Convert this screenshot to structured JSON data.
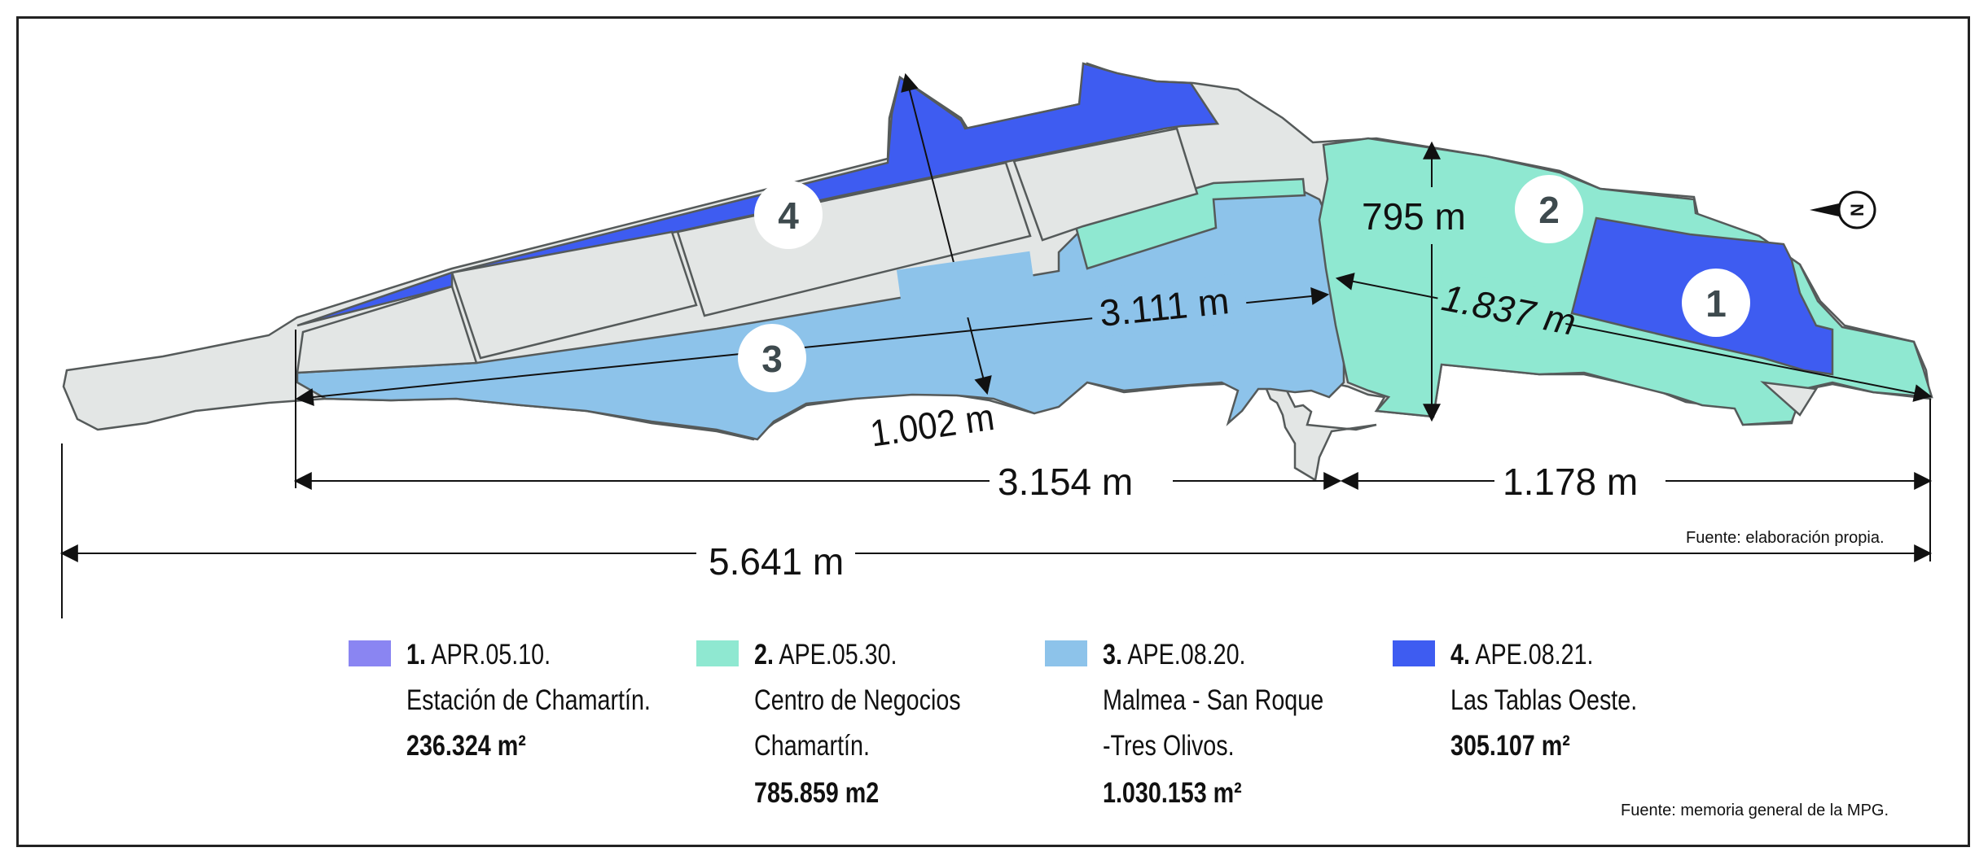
{
  "colors": {
    "zone_1": "#8a85f2",
    "zone_2": "#8fe8d1",
    "zone_3": "#8dc3ea",
    "zone_4": "#3e5cf1",
    "gray_area": "#e3e6e5",
    "outline": "#555a5a",
    "badge_text": "#3e4a4e"
  },
  "map": {
    "markers": [
      {
        "id": "1",
        "label": "1"
      },
      {
        "id": "2",
        "label": "2"
      },
      {
        "id": "3",
        "label": "3"
      },
      {
        "id": "4",
        "label": "4"
      }
    ],
    "dimensions": {
      "d_1002": "1.002 m",
      "d_3111": "3.111 m",
      "d_795": "795 m",
      "d_1837": "1.837 m",
      "d_3154": "3.154 m",
      "d_1178": "1.178 m",
      "d_5641": "5.641 m"
    },
    "north_label": "N",
    "north_icon": "north-arrow-icon"
  },
  "legend": [
    {
      "number": "1.",
      "code": "APR.05.10.",
      "lines": [
        "Estación de Chamartín."
      ],
      "area": "236.324 m²",
      "color_key": "zone_1"
    },
    {
      "number": "2.",
      "code": "APE.05.30.",
      "lines": [
        "Centro de Negocios",
        "Chamartín."
      ],
      "area": "785.859 m2",
      "color_key": "zone_2"
    },
    {
      "number": "3.",
      "code": "APE.08.20.",
      "lines": [
        "Malmea - San Roque",
        "-Tres Olivos."
      ],
      "area": "1.030.153 m²",
      "color_key": "zone_3"
    },
    {
      "number": "4.",
      "code": "APE.08.21.",
      "lines": [
        "Las Tablas Oeste."
      ],
      "area": "305.107 m²",
      "color_key": "zone_4"
    }
  ],
  "sources": {
    "top": "Fuente: elaboración propia.",
    "bottom": "Fuente: memoria general de la MPG."
  }
}
